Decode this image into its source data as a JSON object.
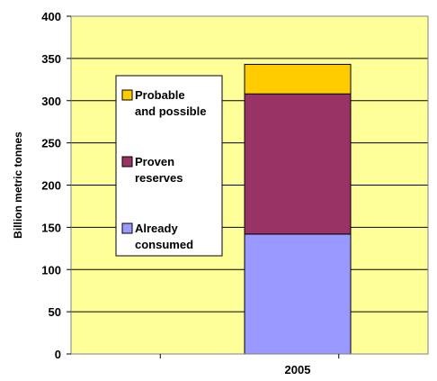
{
  "chart_data": {
    "type": "bar",
    "stacked": true,
    "categories": [
      "2005"
    ],
    "series": [
      {
        "name": "Already consumed",
        "name_lines": [
          "Already",
          "consumed"
        ],
        "values": [
          142
        ],
        "color": "#9999ff"
      },
      {
        "name": "Proven reserves",
        "name_lines": [
          "Proven",
          "reserves"
        ],
        "values": [
          166
        ],
        "color": "#993366"
      },
      {
        "name": "Probable and possible",
        "name_lines": [
          "Probable",
          "and possible"
        ],
        "values": [
          35
        ],
        "color": "#ffcc00"
      }
    ],
    "ylabel": "Billion metric tonnes",
    "ylim": [
      0,
      400
    ],
    "yticks": [
      "0",
      "50",
      "100",
      "150",
      "200",
      "250",
      "300",
      "350",
      "400"
    ],
    "grid": true,
    "legend_position": "left, inside plot",
    "background_color": "#ffff99"
  }
}
